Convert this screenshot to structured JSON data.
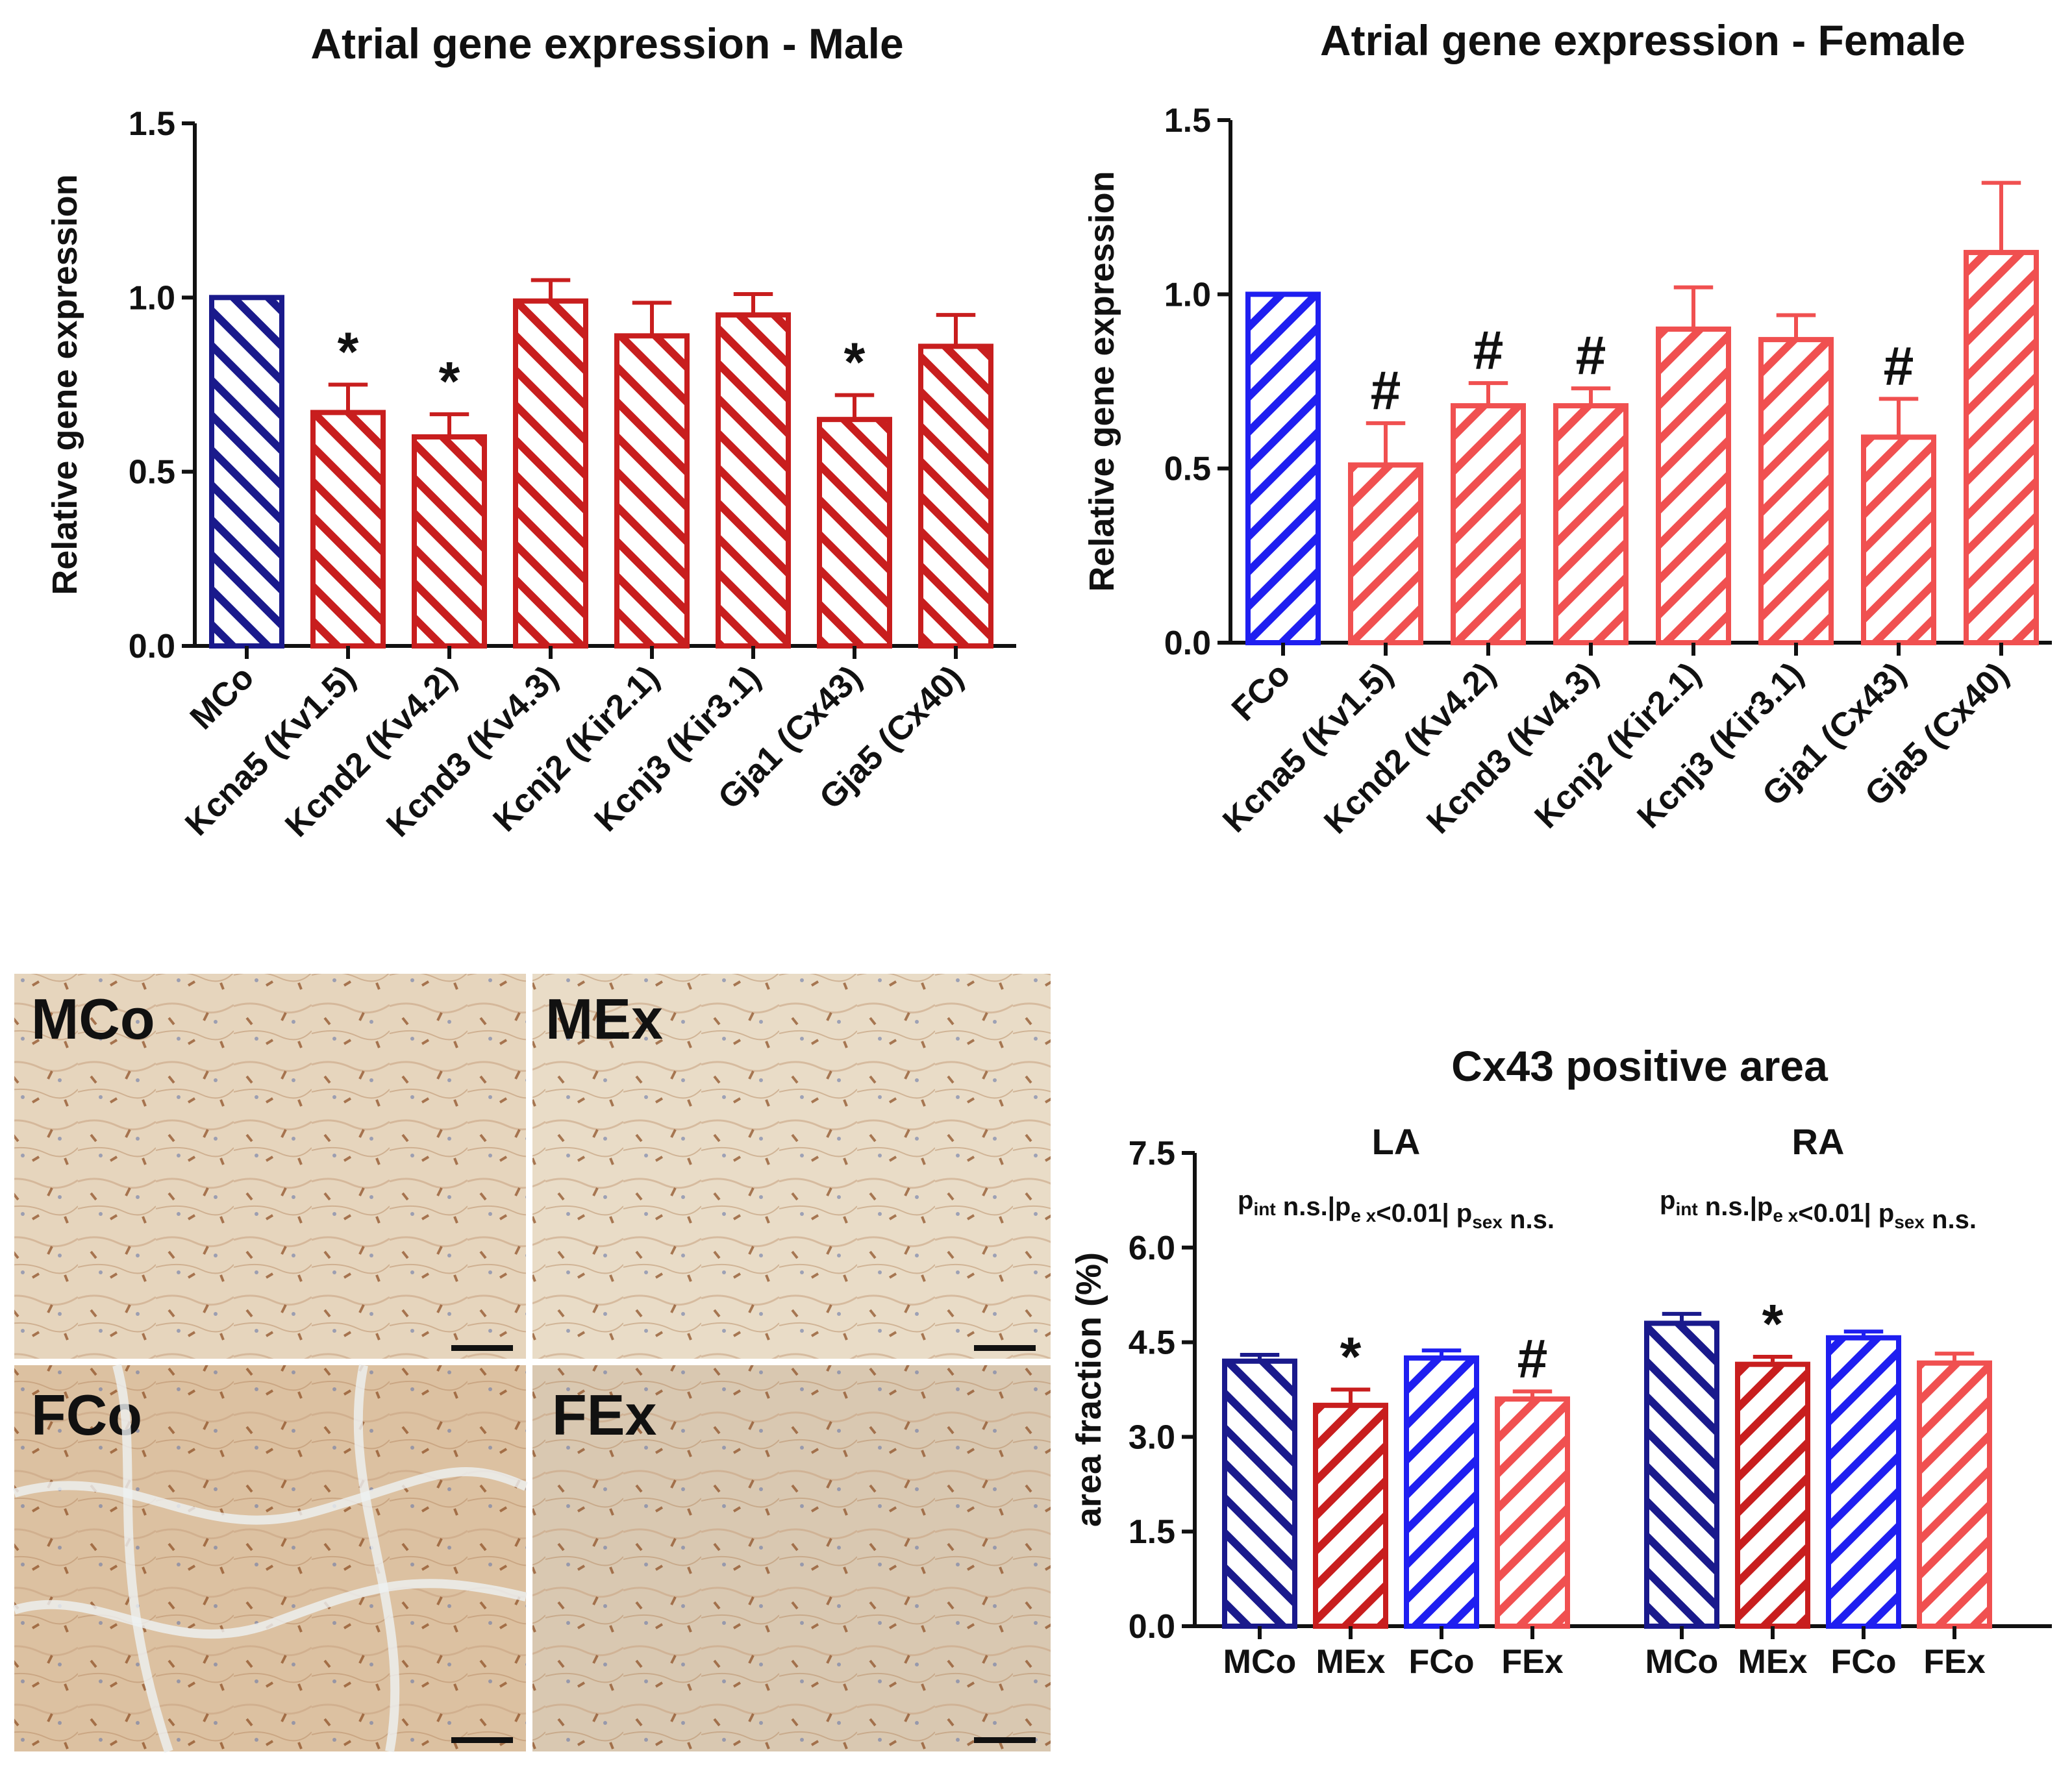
{
  "colors": {
    "navy": "#1a1a8c",
    "blue": "#1f1ff0",
    "darkred": "#c81e1e",
    "lightred": "#f05050",
    "tissue_light": "#e8d9c3",
    "tissue_dark": "#cfa77e",
    "stain": "#9a5a2a"
  },
  "micro": {
    "panels": [
      {
        "label": "MCo"
      },
      {
        "label": "MEx"
      },
      {
        "label": "FCo"
      },
      {
        "label": "FEx"
      }
    ]
  },
  "chart_data": [
    {
      "type": "bar",
      "title": "Atrial gene expression - Male",
      "xlabel": "",
      "ylabel": "Relative gene expression",
      "ylim": [
        0,
        1.5
      ],
      "yticks": [
        "0.0",
        "0.5",
        "1.0",
        "1.5"
      ],
      "categories": [
        "MCo",
        "Kcna5 (Kv1.5)",
        "Kcnd2 (Kv4.2)",
        "Kcnd3 (Kv4.3)",
        "Kcnj2 (Kir2.1)",
        "Kcnj3 (Kir3.1)",
        "Gja1 (Cx43)",
        "Gja5 (Cx40)"
      ],
      "values": [
        1.0,
        0.67,
        0.6,
        0.99,
        0.89,
        0.95,
        0.65,
        0.86
      ],
      "errors": [
        0.0,
        0.08,
        0.065,
        0.06,
        0.095,
        0.06,
        0.07,
        0.09
      ],
      "annotations": [
        "",
        "*",
        "*",
        "",
        "",
        "",
        "*",
        ""
      ],
      "bar_colors": [
        "navy",
        "darkred",
        "darkred",
        "darkred",
        "darkred",
        "darkred",
        "darkred",
        "darkred"
      ],
      "hatch": "back",
      "grid": false
    },
    {
      "type": "bar",
      "title": "Atrial gene expression - Female",
      "xlabel": "",
      "ylabel": "Relative gene expression",
      "ylim": [
        0,
        1.5
      ],
      "yticks": [
        "0.0",
        "0.5",
        "1.0",
        "1.5"
      ],
      "categories": [
        "FCo",
        "Kcna5 (Kv1.5)",
        "Kcnd2 (Kv4.2)",
        "Kcnd3 (Kv4.3)",
        "Kcnj2 (Kir2.1)",
        "Kcnj3 (Kir3.1)",
        "Gja1 (Cx43)",
        "Gja5 (Cx40)"
      ],
      "values": [
        1.0,
        0.51,
        0.68,
        0.68,
        0.9,
        0.87,
        0.59,
        1.12
      ],
      "errors": [
        0.0,
        0.12,
        0.065,
        0.05,
        0.12,
        0.07,
        0.11,
        0.2
      ],
      "annotations": [
        "",
        "#",
        "#",
        "#",
        "",
        "",
        "#",
        ""
      ],
      "bar_colors": [
        "blue",
        "lightred",
        "lightred",
        "lightred",
        "lightred",
        "lightred",
        "lightred",
        "lightred"
      ],
      "hatch": "forward",
      "grid": false
    },
    {
      "type": "bar",
      "title": "Cx43 positive area",
      "xlabel": "",
      "ylabel": "area fraction (%)",
      "ylim": [
        0,
        7.5
      ],
      "yticks": [
        "0.0",
        "1.5",
        "3.0",
        "4.5",
        "6.0",
        "7.5"
      ],
      "groups": [
        {
          "name": "LA",
          "stats": [
            "int",
            "n.s.",
            "e x",
            "<0.01",
            "sex",
            "n.s."
          ],
          "categories": [
            "MCo",
            "MEx",
            "FCo",
            "FEx"
          ],
          "values": [
            4.2,
            3.5,
            4.25,
            3.6
          ],
          "errors": [
            0.1,
            0.25,
            0.12,
            0.12
          ],
          "annotations": [
            "",
            "*",
            "",
            "#"
          ]
        },
        {
          "name": "RA",
          "stats": [
            "int",
            "n.s.",
            "e x",
            "<0.01",
            "sex",
            "n.s."
          ],
          "categories": [
            "MCo",
            "MEx",
            "FCo",
            "FEx"
          ],
          "values": [
            4.8,
            4.15,
            4.57,
            4.17
          ],
          "errors": [
            0.15,
            0.12,
            0.1,
            0.15
          ],
          "annotations": [
            "",
            "*",
            "",
            ""
          ]
        }
      ],
      "bar_colors": [
        "navy",
        "darkred",
        "blue",
        "lightred"
      ],
      "bar_hatch": [
        "back",
        "forward",
        "forward",
        "forward"
      ],
      "grid": false
    }
  ]
}
